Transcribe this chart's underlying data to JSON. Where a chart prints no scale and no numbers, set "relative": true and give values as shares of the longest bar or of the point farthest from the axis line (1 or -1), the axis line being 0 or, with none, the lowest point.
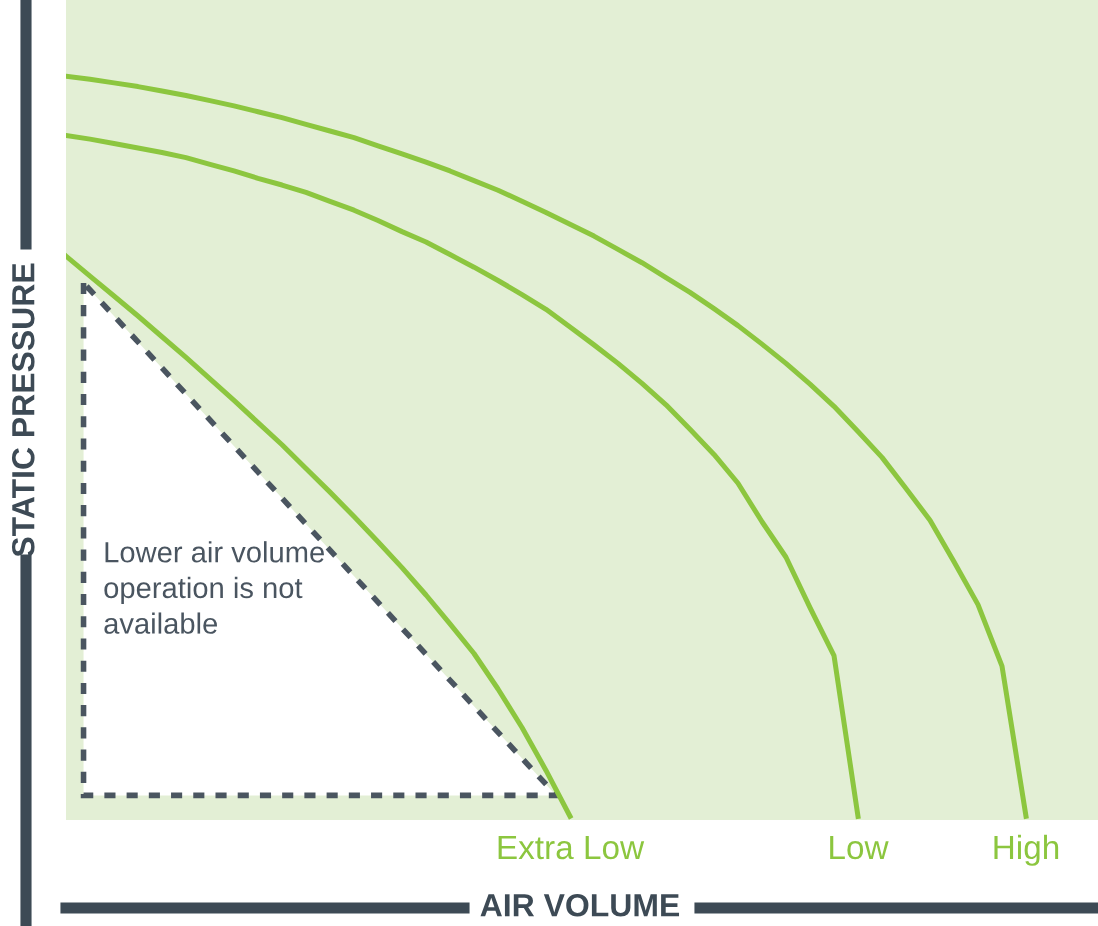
{
  "chart_data": {
    "type": "line",
    "relative": true,
    "xlabel": "AIR VOLUME",
    "ylabel": "STATIC PRESSURE",
    "categories": [
      null,
      null,
      null,
      null,
      null,
      null,
      null,
      null,
      null,
      null,
      null,
      null,
      null,
      null,
      null,
      null,
      null,
      null,
      null,
      null,
      null,
      null,
      null,
      null,
      null,
      null,
      null,
      null,
      null,
      null,
      null,
      null,
      null,
      null,
      null,
      null,
      null,
      null,
      null,
      null,
      null,
      null,
      null,
      null
    ],
    "series": [
      {
        "name": "Extra Low",
        "color": "#8cc63f",
        "values": [
          0.757,
          0.73,
          0.703,
          0.676,
          0.648,
          0.62,
          0.591,
          0.562,
          0.532,
          0.502,
          0.47,
          0.438,
          0.405,
          0.371,
          0.336,
          0.299,
          0.26,
          0.22,
          0.172,
          0.12,
          0.062,
          0,
          null,
          null,
          null,
          null,
          null,
          null,
          null,
          null,
          null,
          null,
          null,
          null,
          null,
          null,
          null,
          null,
          null,
          null,
          null,
          null,
          null,
          null
        ]
      },
      {
        "name": "Low",
        "color": "#8cc63f",
        "values": [
          0.92,
          0.915,
          0.909,
          0.903,
          0.897,
          0.89,
          0.881,
          0.872,
          0.862,
          0.853,
          0.843,
          0.831,
          0.819,
          0.805,
          0.79,
          0.776,
          0.759,
          0.742,
          0.724,
          0.705,
          0.685,
          0.661,
          0.637,
          0.612,
          0.585,
          0.556,
          0.523,
          0.489,
          0.45,
          0.398,
          0.35,
          0.282,
          0.217,
          0,
          null,
          null,
          null,
          null,
          null,
          null,
          null,
          null,
          null,
          null
        ]
      },
      {
        "name": "High",
        "color": "#8cc63f",
        "values": [
          1.0,
          0.996,
          0.991,
          0.986,
          0.98,
          0.974,
          0.967,
          0.96,
          0.952,
          0.944,
          0.935,
          0.926,
          0.917,
          0.906,
          0.895,
          0.884,
          0.872,
          0.859,
          0.846,
          0.831,
          0.816,
          0.8,
          0.784,
          0.766,
          0.748,
          0.728,
          0.708,
          0.686,
          0.663,
          0.638,
          0.612,
          0.584,
          0.554,
          0.52,
          0.485,
          0.443,
          0.4,
          0.344,
          0.286,
          0.203,
          0,
          null,
          null,
          null
        ]
      }
    ],
    "annotations": [
      "Lower air volume\noperation is not\navailable"
    ]
  }
}
